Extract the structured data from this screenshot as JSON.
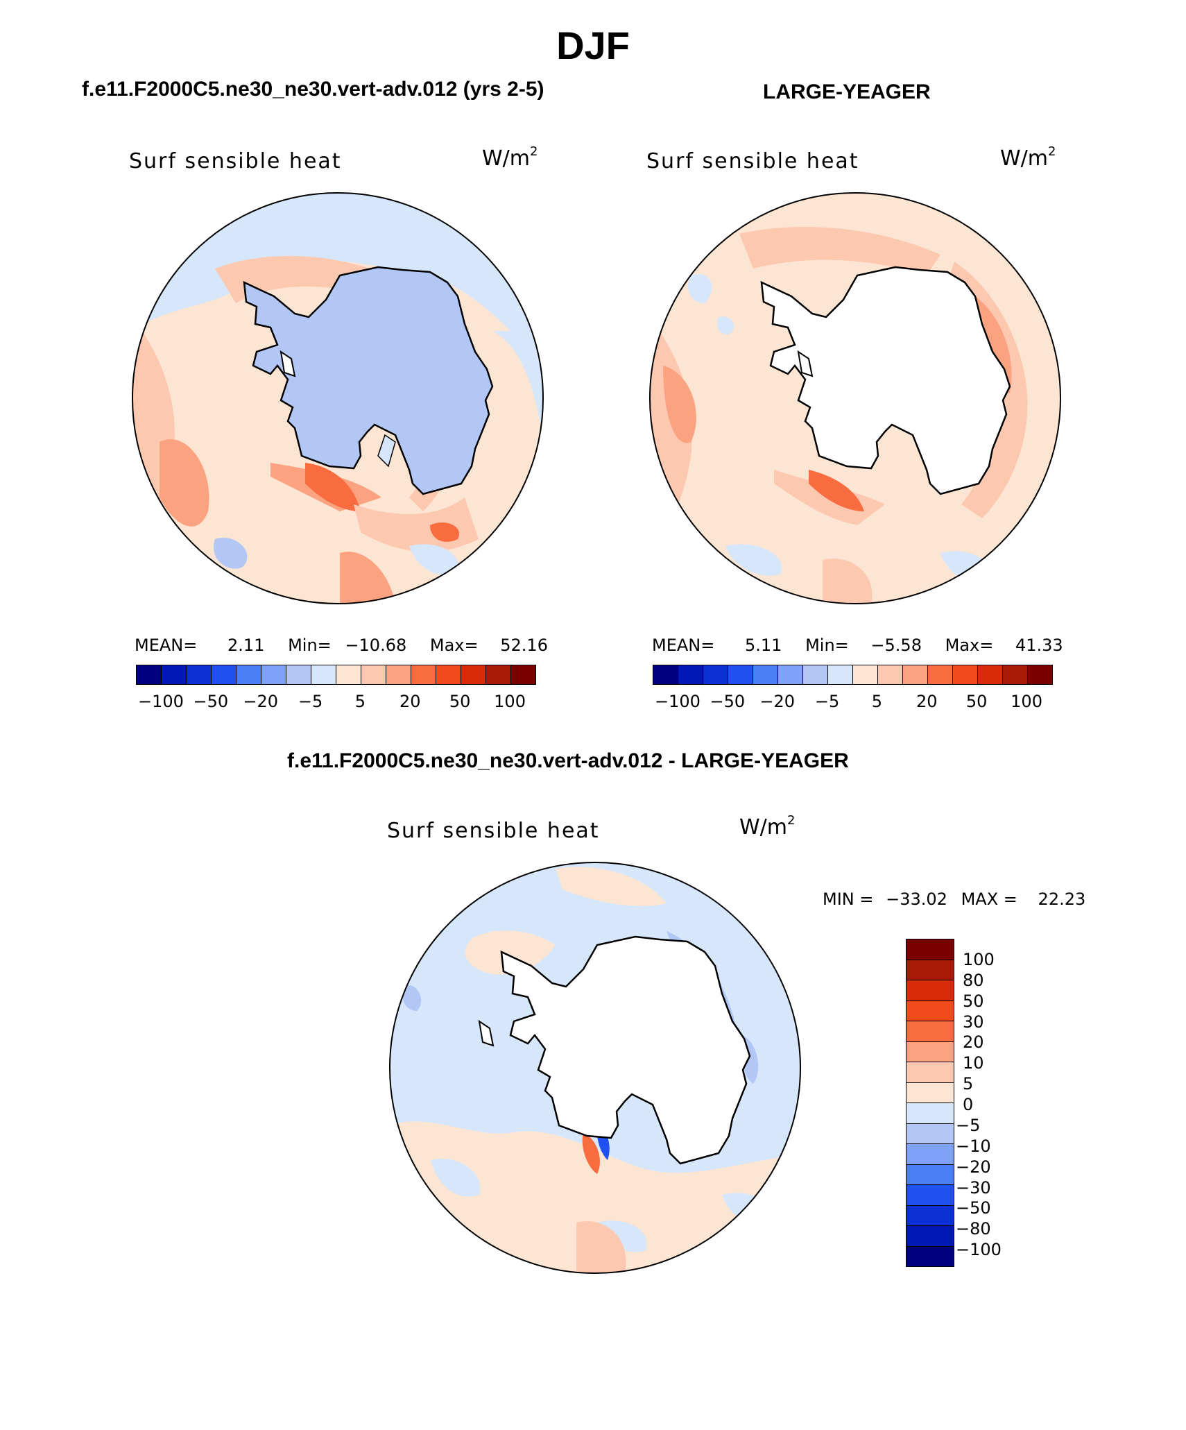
{
  "figure": {
    "season": "DJF",
    "units": "W/m",
    "units_exp": "2",
    "variable_label": "Surf sensible heat"
  },
  "panels": [
    {
      "id": "model",
      "title": "f.e11.F2000C5.ne30_ne30.vert-adv.012 (yrs 2-5)",
      "mean_label": "MEAN=",
      "mean": "2.11",
      "min_label": "Min=",
      "min": "−10.68",
      "max_label": "Max=",
      "max": "52.16",
      "land_fill": "#b3c7f7"
    },
    {
      "id": "obs",
      "title": "LARGE-YEAGER",
      "mean_label": "MEAN=",
      "mean": "5.11",
      "min_label": "Min=",
      "min": "−5.58",
      "max_label": "Max=",
      "max": "41.33",
      "land_fill": "#ffffff"
    }
  ],
  "colorbar_top": {
    "colors": [
      "#00007f",
      "#0018b4",
      "#0a30d6",
      "#2050f0",
      "#4a7ff5",
      "#7ea2f5",
      "#b3c7f7",
      "#d6e6fb",
      "#fde5d3",
      "#fdc8b0",
      "#fba380",
      "#f96c40",
      "#f24a1c",
      "#d92a0a",
      "#a81a05",
      "#7a0000"
    ],
    "tick_labels": [
      "−100",
      "−50",
      "−20",
      "−5",
      "5",
      "20",
      "50",
      "100"
    ]
  },
  "difference": {
    "title": "f.e11.F2000C5.ne30_ne30.vert-adv.012 - LARGE-YEAGER",
    "min_label": "MIN =",
    "min": "−33.02",
    "max_label": "MAX =",
    "max": "22.23",
    "colorbar": {
      "colors_top_to_bottom": [
        "#7a0000",
        "#a81a05",
        "#d92a0a",
        "#f24a1c",
        "#f96c40",
        "#fba380",
        "#fdc8b0",
        "#fde5d3",
        "#d6e6fb",
        "#b3c7f7",
        "#7ea2f5",
        "#4a7ff5",
        "#2050f0",
        "#0a30d6",
        "#0018b4",
        "#00007f"
      ],
      "tick_labels": [
        "100",
        "80",
        "50",
        "30",
        "20",
        "10",
        "5",
        "0",
        "−5",
        "−10",
        "−20",
        "−30",
        "−50",
        "−80",
        "−100"
      ]
    }
  },
  "colors": {
    "ocean_warm_light": "#fde5d3",
    "ocean_warm": "#fdc8b0",
    "ocean_warmer": "#fba380",
    "ocean_hot": "#f96c40",
    "ocean_cool": "#d6e6fb",
    "ocean_cooler": "#b3c7f7",
    "coast": "#000000"
  }
}
